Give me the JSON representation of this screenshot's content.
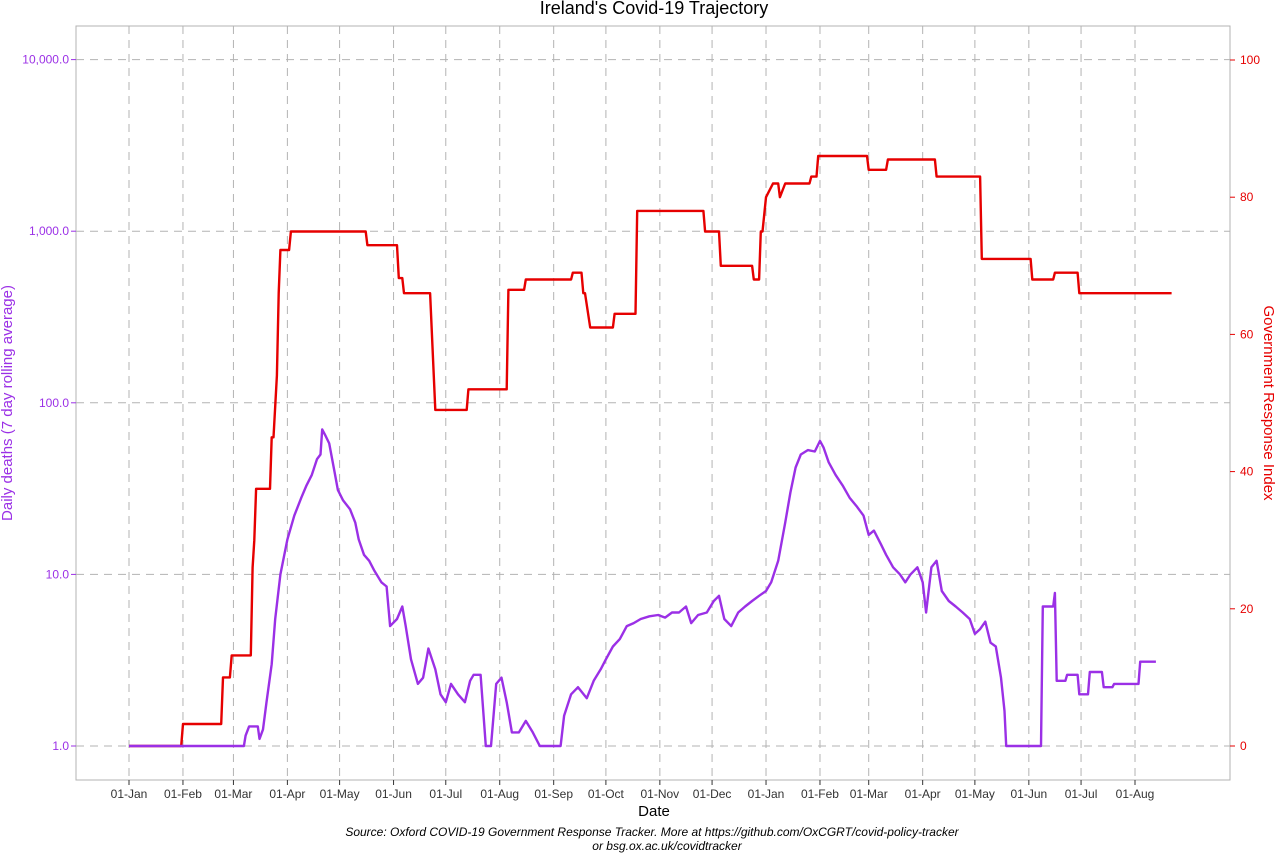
{
  "chart_data": {
    "type": "line",
    "title": "Ireland's Covid-19 Trajectory",
    "xlabel": "Date",
    "ylabel_left": "Daily deaths (7 day rolling average)",
    "ylabel_right": "Government Response Index",
    "caption_line1": "Source: Oxford COVID-19 Government Response Tracker. More at https://github.com/OxCGRT/covid-policy-tracker",
    "caption_line2": "or bsg.ox.ac.uk/covidtracker",
    "y_left_scale": "log10",
    "y_left_ticks": [
      1,
      10,
      100,
      1000,
      10000
    ],
    "y_left_tick_labels": [
      "1.0",
      "10.0",
      "100.0",
      "1,000.0",
      "10,000.0"
    ],
    "y_right_ticks": [
      0,
      20,
      40,
      60,
      80,
      100
    ],
    "y_right_tick_labels": [
      "0",
      "20",
      "40",
      "60",
      "80",
      "100"
    ],
    "x_ticks": [
      "2020-01-01",
      "2020-02-01",
      "2020-03-01",
      "2020-04-01",
      "2020-05-01",
      "2020-06-01",
      "2020-07-01",
      "2020-08-01",
      "2020-09-01",
      "2020-10-01",
      "2020-11-01",
      "2020-12-01",
      "2021-01-01",
      "2021-02-01",
      "2021-03-01",
      "2021-04-01",
      "2021-05-01",
      "2021-06-01",
      "2021-07-01",
      "2021-08-01"
    ],
    "x_tick_labels": [
      "01-Jan",
      "01-Feb",
      "01-Mar",
      "01-Apr",
      "01-May",
      "01-Jun",
      "01-Jul",
      "01-Aug",
      "01-Sep",
      "01-Oct",
      "01-Nov",
      "01-Dec",
      "01-Jan",
      "01-Feb",
      "01-Mar",
      "01-Apr",
      "01-May",
      "01-Jun",
      "01-Jul",
      "01-Aug"
    ],
    "grid": true,
    "colors": {
      "deaths": "#9b30e6",
      "index": "#e60000",
      "left_axis": "#9b30e6",
      "right_axis": "#e60000",
      "grid": "#b3b3b3"
    },
    "series": [
      {
        "axis": "right",
        "points": [
          [
            "2020-01-01",
            0
          ],
          [
            "2020-01-31",
            0
          ],
          [
            "2020-02-01",
            3.2
          ],
          [
            "2020-02-23",
            3.2
          ],
          [
            "2020-02-24",
            10
          ],
          [
            "2020-02-28",
            10
          ],
          [
            "2020-02-29",
            13.2
          ],
          [
            "2020-03-11",
            13.2
          ],
          [
            "2020-03-12",
            26
          ],
          [
            "2020-03-13",
            30
          ],
          [
            "2020-03-14",
            37.5
          ],
          [
            "2020-03-22",
            37.5
          ],
          [
            "2020-03-23",
            45
          ],
          [
            "2020-03-24",
            45
          ],
          [
            "2020-03-26",
            54
          ],
          [
            "2020-03-27",
            66
          ],
          [
            "2020-03-28",
            72.3
          ],
          [
            "2020-04-02",
            72.3
          ],
          [
            "2020-04-03",
            75
          ],
          [
            "2020-05-16",
            75
          ],
          [
            "2020-05-17",
            73
          ],
          [
            "2020-06-03",
            73
          ],
          [
            "2020-06-04",
            68.2
          ],
          [
            "2020-06-06",
            68.2
          ],
          [
            "2020-06-07",
            66
          ],
          [
            "2020-06-22",
            66
          ],
          [
            "2020-06-25",
            49
          ],
          [
            "2020-07-13",
            49
          ],
          [
            "2020-07-14",
            52
          ],
          [
            "2020-08-05",
            52
          ],
          [
            "2020-08-06",
            66.5
          ],
          [
            "2020-08-15",
            66.5
          ],
          [
            "2020-08-16",
            68
          ],
          [
            "2020-09-11",
            68
          ],
          [
            "2020-09-12",
            69
          ],
          [
            "2020-09-17",
            69
          ],
          [
            "2020-09-18",
            66
          ],
          [
            "2020-09-19",
            66
          ],
          [
            "2020-09-22",
            61
          ],
          [
            "2020-10-05",
            61
          ],
          [
            "2020-10-06",
            63
          ],
          [
            "2020-10-18",
            63
          ],
          [
            "2020-10-19",
            78
          ],
          [
            "2020-11-26",
            78
          ],
          [
            "2020-11-27",
            75
          ],
          [
            "2020-12-05",
            75
          ],
          [
            "2020-12-06",
            70
          ],
          [
            "2020-12-24",
            70
          ],
          [
            "2020-12-25",
            68
          ],
          [
            "2020-12-28",
            68
          ],
          [
            "2020-12-29",
            75
          ],
          [
            "2020-12-30",
            75
          ],
          [
            "2021-01-01",
            80
          ],
          [
            "2021-01-05",
            82
          ],
          [
            "2021-01-08",
            82
          ],
          [
            "2021-01-09",
            80
          ],
          [
            "2021-01-12",
            82
          ],
          [
            "2021-01-26",
            82
          ],
          [
            "2021-01-27",
            83
          ],
          [
            "2021-01-30",
            83
          ],
          [
            "2021-01-31",
            86
          ],
          [
            "2021-02-28",
            86
          ],
          [
            "2021-03-01",
            84
          ],
          [
            "2021-03-11",
            84
          ],
          [
            "2021-03-12",
            85.5
          ],
          [
            "2021-04-08",
            85.5
          ],
          [
            "2021-04-09",
            83
          ],
          [
            "2021-05-04",
            83
          ],
          [
            "2021-05-05",
            71
          ],
          [
            "2021-06-02",
            71
          ],
          [
            "2021-06-03",
            68
          ],
          [
            "2021-06-15",
            68
          ],
          [
            "2021-06-16",
            69
          ],
          [
            "2021-06-29",
            69
          ],
          [
            "2021-06-30",
            66
          ],
          [
            "2021-08-22",
            66
          ]
        ]
      },
      {
        "axis": "left",
        "points": [
          [
            "2020-01-01",
            1
          ],
          [
            "2020-03-07",
            1
          ],
          [
            "2020-03-08",
            1.15
          ],
          [
            "2020-03-10",
            1.3
          ],
          [
            "2020-03-15",
            1.3
          ],
          [
            "2020-03-16",
            1.1
          ],
          [
            "2020-03-18",
            1.25
          ],
          [
            "2020-03-20",
            1.8
          ],
          [
            "2020-03-23",
            3.0
          ],
          [
            "2020-03-25",
            5.5
          ],
          [
            "2020-03-28",
            10
          ],
          [
            "2020-04-01",
            16
          ],
          [
            "2020-04-05",
            22
          ],
          [
            "2020-04-09",
            28
          ],
          [
            "2020-04-12",
            33
          ],
          [
            "2020-04-15",
            38
          ],
          [
            "2020-04-18",
            47
          ],
          [
            "2020-04-20",
            50
          ],
          [
            "2020-04-21",
            70
          ],
          [
            "2020-04-23",
            64
          ],
          [
            "2020-04-25",
            58
          ],
          [
            "2020-04-28",
            40
          ],
          [
            "2020-04-30",
            31
          ],
          [
            "2020-05-03",
            27
          ],
          [
            "2020-05-07",
            24
          ],
          [
            "2020-05-10",
            20
          ],
          [
            "2020-05-12",
            16
          ],
          [
            "2020-05-15",
            13
          ],
          [
            "2020-05-18",
            12
          ],
          [
            "2020-05-21",
            10.5
          ],
          [
            "2020-05-25",
            9
          ],
          [
            "2020-05-28",
            8.5
          ],
          [
            "2020-05-30",
            5
          ],
          [
            "2020-06-03",
            5.5
          ],
          [
            "2020-06-06",
            6.5
          ],
          [
            "2020-06-08",
            5
          ],
          [
            "2020-06-11",
            3.2
          ],
          [
            "2020-06-15",
            2.3
          ],
          [
            "2020-06-18",
            2.5
          ],
          [
            "2020-06-21",
            3.7
          ],
          [
            "2020-06-25",
            2.8
          ],
          [
            "2020-06-28",
            2.0
          ],
          [
            "2020-07-01",
            1.8
          ],
          [
            "2020-07-04",
            2.3
          ],
          [
            "2020-07-08",
            2.0
          ],
          [
            "2020-07-12",
            1.8
          ],
          [
            "2020-07-15",
            2.4
          ],
          [
            "2020-07-17",
            2.6
          ],
          [
            "2020-07-21",
            2.6
          ],
          [
            "2020-07-24",
            1.0
          ],
          [
            "2020-07-27",
            1.0
          ],
          [
            "2020-07-30",
            2.3
          ],
          [
            "2020-08-02",
            2.5
          ],
          [
            "2020-08-05",
            1.8
          ],
          [
            "2020-08-08",
            1.2
          ],
          [
            "2020-08-12",
            1.2
          ],
          [
            "2020-08-16",
            1.4
          ],
          [
            "2020-08-20",
            1.2
          ],
          [
            "2020-08-24",
            1.0
          ],
          [
            "2020-09-05",
            1.0
          ],
          [
            "2020-09-07",
            1.5
          ],
          [
            "2020-09-11",
            2.0
          ],
          [
            "2020-09-15",
            2.2
          ],
          [
            "2020-09-20",
            1.9
          ],
          [
            "2020-09-24",
            2.4
          ],
          [
            "2020-09-28",
            2.8
          ],
          [
            "2020-10-01",
            3.2
          ],
          [
            "2020-10-05",
            3.8
          ],
          [
            "2020-10-09",
            4.2
          ],
          [
            "2020-10-13",
            5.0
          ],
          [
            "2020-10-17",
            5.2
          ],
          [
            "2020-10-21",
            5.5
          ],
          [
            "2020-10-26",
            5.7
          ],
          [
            "2020-10-31",
            5.8
          ],
          [
            "2020-11-04",
            5.6
          ],
          [
            "2020-11-08",
            6.0
          ],
          [
            "2020-11-12",
            6.0
          ],
          [
            "2020-11-16",
            6.5
          ],
          [
            "2020-11-19",
            5.2
          ],
          [
            "2020-11-23",
            5.8
          ],
          [
            "2020-11-28",
            6.0
          ],
          [
            "2020-12-02",
            7.0
          ],
          [
            "2020-12-05",
            7.5
          ],
          [
            "2020-12-08",
            5.5
          ],
          [
            "2020-12-12",
            5.0
          ],
          [
            "2020-12-16",
            6.0
          ],
          [
            "2020-12-20",
            6.5
          ],
          [
            "2020-12-24",
            7.0
          ],
          [
            "2020-12-28",
            7.5
          ],
          [
            "2021-01-01",
            8.0
          ],
          [
            "2021-01-04",
            9.0
          ],
          [
            "2021-01-08",
            12
          ],
          [
            "2021-01-12",
            20
          ],
          [
            "2021-01-15",
            30
          ],
          [
            "2021-01-18",
            42
          ],
          [
            "2021-01-21",
            50
          ],
          [
            "2021-01-25",
            53
          ],
          [
            "2021-01-29",
            52
          ],
          [
            "2021-02-01",
            60
          ],
          [
            "2021-02-03",
            55
          ],
          [
            "2021-02-06",
            45
          ],
          [
            "2021-02-10",
            38
          ],
          [
            "2021-02-14",
            33
          ],
          [
            "2021-02-18",
            28
          ],
          [
            "2021-02-22",
            25
          ],
          [
            "2021-02-26",
            22
          ],
          [
            "2021-03-01",
            17
          ],
          [
            "2021-03-04",
            18
          ],
          [
            "2021-03-08",
            15
          ],
          [
            "2021-03-11",
            13
          ],
          [
            "2021-03-15",
            11
          ],
          [
            "2021-03-19",
            10
          ],
          [
            "2021-03-22",
            9
          ],
          [
            "2021-03-25",
            10
          ],
          [
            "2021-03-29",
            11
          ],
          [
            "2021-04-01",
            9
          ],
          [
            "2021-04-03",
            6
          ],
          [
            "2021-04-06",
            11
          ],
          [
            "2021-04-09",
            12
          ],
          [
            "2021-04-12",
            8
          ],
          [
            "2021-04-16",
            7
          ],
          [
            "2021-04-20",
            6.5
          ],
          [
            "2021-04-24",
            6.0
          ],
          [
            "2021-04-28",
            5.5
          ],
          [
            "2021-05-01",
            4.5
          ],
          [
            "2021-05-04",
            4.8
          ],
          [
            "2021-05-07",
            5.3
          ],
          [
            "2021-05-10",
            4.0
          ],
          [
            "2021-05-13",
            3.8
          ],
          [
            "2021-05-16",
            2.5
          ],
          [
            "2021-05-18",
            1.6
          ],
          [
            "2021-05-19",
            1.0
          ],
          [
            "2021-06-08",
            1.0
          ],
          [
            "2021-06-09",
            6.5
          ],
          [
            "2021-06-15",
            6.5
          ],
          [
            "2021-06-16",
            7.8
          ],
          [
            "2021-06-17",
            2.4
          ],
          [
            "2021-06-22",
            2.4
          ],
          [
            "2021-06-23",
            2.6
          ],
          [
            "2021-06-29",
            2.6
          ],
          [
            "2021-06-30",
            2.0
          ],
          [
            "2021-07-05",
            2.0
          ],
          [
            "2021-07-06",
            2.7
          ],
          [
            "2021-07-13",
            2.7
          ],
          [
            "2021-07-14",
            2.2
          ],
          [
            "2021-07-19",
            2.2
          ],
          [
            "2021-07-20",
            2.3
          ],
          [
            "2021-08-03",
            2.3
          ],
          [
            "2021-08-04",
            3.1
          ],
          [
            "2021-08-13",
            3.1
          ]
        ]
      }
    ]
  }
}
